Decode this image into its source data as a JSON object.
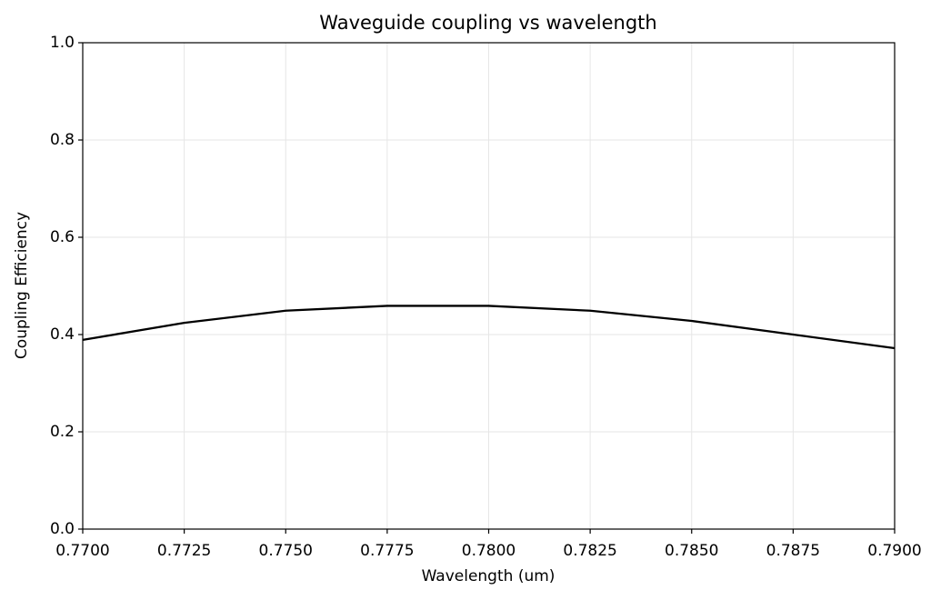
{
  "chart_data": {
    "type": "line",
    "title": "Waveguide coupling vs wavelength",
    "x_label": "Wavelength (um)",
    "y_label": "Coupling Efficiency",
    "x": [
      0.77,
      0.7725,
      0.775,
      0.7775,
      0.78,
      0.7825,
      0.785,
      0.7875,
      0.79
    ],
    "series": [
      {
        "name": "Coupling efficiency",
        "color": "#000000",
        "values": [
          0.389,
          0.424,
          0.449,
          0.459,
          0.459,
          0.449,
          0.428,
          0.4,
          0.372
        ]
      }
    ],
    "xlim": [
      0.77,
      0.79
    ],
    "xticks": [
      {
        "value": 0.77,
        "label": "0.7700"
      },
      {
        "value": 0.7725,
        "label": "0.7725"
      },
      {
        "value": 0.775,
        "label": "0.7750"
      },
      {
        "value": 0.7775,
        "label": "0.7775"
      },
      {
        "value": 0.78,
        "label": "0.7800"
      },
      {
        "value": 0.7825,
        "label": "0.7825"
      },
      {
        "value": 0.785,
        "label": "0.7850"
      },
      {
        "value": 0.7875,
        "label": "0.7875"
      },
      {
        "value": 0.79,
        "label": "0.7900"
      }
    ],
    "ylim": [
      0,
      1
    ],
    "yticks": [
      {
        "value": 0,
        "label": "0.0"
      },
      0.2,
      0.4,
      0.6,
      0.8,
      {
        "value": 1,
        "label": "1.0"
      }
    ],
    "grid": true,
    "legend": false
  }
}
